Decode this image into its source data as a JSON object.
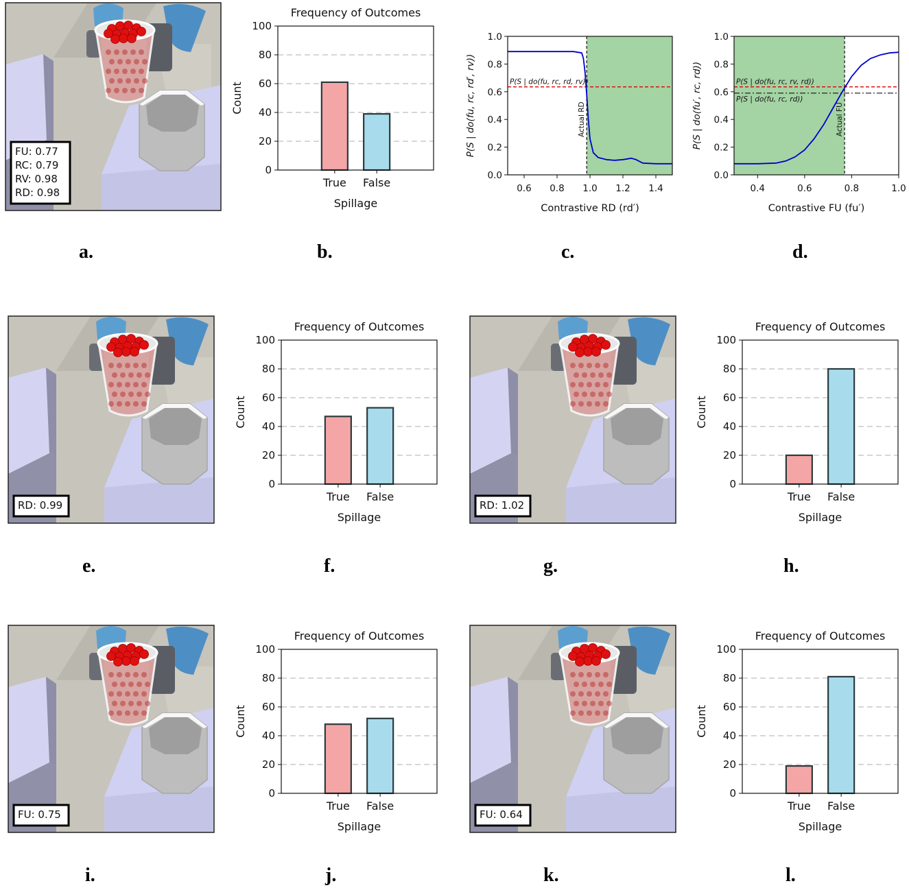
{
  "figure": {
    "panel_labels": [
      "a.",
      "b.",
      "c.",
      "d.",
      "e.",
      "f.",
      "g.",
      "h.",
      "i.",
      "j.",
      "k.",
      "l."
    ]
  },
  "colors": {
    "true_bar": "#f4a6a6",
    "false_bar": "#a8dcec",
    "bar_edge": "#2b3a3e",
    "curve": "#0000cc",
    "ref_line": "#dd0000",
    "shade": "#9fd19f"
  },
  "scenes": [
    {
      "id": "a",
      "overlay_lines": [
        "FU: 0.77",
        "RC: 0.79",
        "RV: 0.98",
        "RD: 0.98"
      ]
    },
    {
      "id": "e",
      "overlay_lines": [
        "RD: 0.99"
      ]
    },
    {
      "id": "g",
      "overlay_lines": [
        "RD: 1.02"
      ]
    },
    {
      "id": "i",
      "overlay_lines": [
        "FU: 0.75"
      ]
    },
    {
      "id": "k",
      "overlay_lines": [
        "FU: 0.64"
      ]
    }
  ],
  "chart_data": [
    {
      "id": "b",
      "type": "bar",
      "title": "Frequency of Outcomes",
      "xlabel": "Spillage",
      "ylabel": "Count",
      "categories": [
        "True",
        "False"
      ],
      "values": [
        61,
        39
      ],
      "ylim": [
        0,
        100
      ],
      "yticks": [
        "0",
        "20",
        "40",
        "60",
        "80",
        "100"
      ],
      "grid": "dashed-horizontal"
    },
    {
      "id": "c",
      "type": "line",
      "xlabel": "Contrastive RD (rd′)",
      "ylabel": "P(S | do(fu, rc, rd′, rv))",
      "xlim": [
        0.5,
        1.5
      ],
      "ylim": [
        0.0,
        1.0
      ],
      "xticks": [
        "0.6",
        "0.8",
        "1.0",
        "1.2",
        "1.4"
      ],
      "yticks": [
        "0.0",
        "0.2",
        "0.4",
        "0.6",
        "0.8",
        "1.0"
      ],
      "x": [
        0.5,
        0.9,
        0.95,
        0.96,
        0.97,
        0.98,
        0.99,
        1.0,
        1.02,
        1.05,
        1.1,
        1.15,
        1.2,
        1.25,
        1.28,
        1.32,
        1.4,
        1.5
      ],
      "y": [
        0.89,
        0.89,
        0.88,
        0.84,
        0.74,
        0.58,
        0.4,
        0.26,
        0.16,
        0.125,
        0.11,
        0.105,
        0.11,
        0.12,
        0.11,
        0.085,
        0.08,
        0.08
      ],
      "reference_lines": [
        {
          "label": "P(S | do(fu, rc, rd, rv))",
          "y": 0.635
        }
      ],
      "vertical_marker": {
        "label": "Actual RD",
        "x": 0.98
      },
      "shaded_region": [
        0.98,
        1.5
      ]
    },
    {
      "id": "d",
      "type": "line",
      "xlabel": "Contrastive FU (fu′)",
      "ylabel": "P(S | do(fu′, rc, rd))",
      "xlim": [
        0.3,
        1.0
      ],
      "ylim": [
        0.0,
        1.0
      ],
      "xticks": [
        "0.4",
        "0.6",
        "0.8",
        "1.0"
      ],
      "yticks": [
        "0.0",
        "0.2",
        "0.4",
        "0.6",
        "0.8",
        "1.0"
      ],
      "x": [
        0.3,
        0.4,
        0.48,
        0.52,
        0.56,
        0.6,
        0.64,
        0.68,
        0.72,
        0.76,
        0.8,
        0.84,
        0.88,
        0.92,
        0.96,
        1.0
      ],
      "y": [
        0.08,
        0.08,
        0.085,
        0.1,
        0.13,
        0.18,
        0.26,
        0.36,
        0.48,
        0.6,
        0.71,
        0.79,
        0.84,
        0.865,
        0.88,
        0.885
      ],
      "reference_lines": [
        {
          "label": "P(S | do(fu, rc, rv, rd))",
          "y": 0.635
        },
        {
          "label": "P(S | do(fu, rc, rd))",
          "y": 0.59
        }
      ],
      "vertical_marker": {
        "label": "Actual FU",
        "x": 0.77
      },
      "shaded_region": [
        0.3,
        0.77
      ]
    },
    {
      "id": "f",
      "type": "bar",
      "title": "Frequency of Outcomes",
      "xlabel": "Spillage",
      "ylabel": "Count",
      "categories": [
        "True",
        "False"
      ],
      "values": [
        47,
        53
      ],
      "ylim": [
        0,
        100
      ],
      "yticks": [
        "0",
        "20",
        "40",
        "60",
        "80",
        "100"
      ],
      "grid": "dashed-horizontal"
    },
    {
      "id": "h",
      "type": "bar",
      "title": "Frequency of Outcomes",
      "xlabel": "Spillage",
      "ylabel": "Count",
      "categories": [
        "True",
        "False"
      ],
      "values": [
        20,
        80
      ],
      "ylim": [
        0,
        100
      ],
      "yticks": [
        "0",
        "20",
        "40",
        "60",
        "80",
        "100"
      ],
      "grid": "dashed-horizontal"
    },
    {
      "id": "j",
      "type": "bar",
      "title": "Frequency of Outcomes",
      "xlabel": "Spillage",
      "ylabel": "Count",
      "categories": [
        "True",
        "False"
      ],
      "values": [
        48,
        52
      ],
      "ylim": [
        0,
        100
      ],
      "yticks": [
        "0",
        "20",
        "40",
        "60",
        "80",
        "100"
      ],
      "grid": "dashed-horizontal"
    },
    {
      "id": "l",
      "type": "bar",
      "title": "Frequency of Outcomes",
      "xlabel": "Spillage",
      "ylabel": "Count",
      "categories": [
        "True",
        "False"
      ],
      "values": [
        19,
        81
      ],
      "ylim": [
        0,
        100
      ],
      "yticks": [
        "0",
        "20",
        "40",
        "60",
        "80",
        "100"
      ],
      "grid": "dashed-horizontal"
    }
  ]
}
